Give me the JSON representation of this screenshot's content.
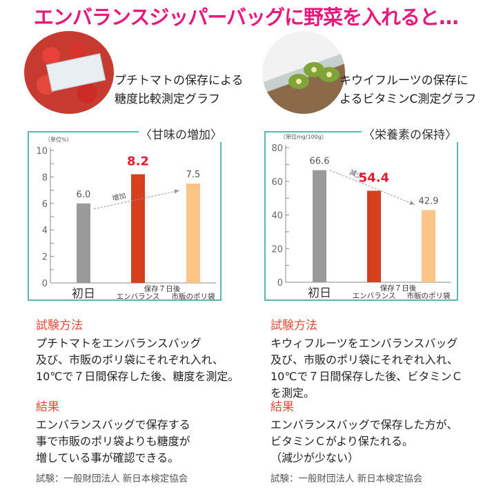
{
  "title": "エンバランスジッパーバッグに野菜を入れると…",
  "colors": {
    "title": "#e8197c",
    "border": "#57b7ae",
    "initial": "#9a9a9c",
    "embalance": "#d6401f",
    "polybag": "#fbc58a",
    "highlight": "#e8192c"
  },
  "left": {
    "caption": [
      "プチトマトの保存による",
      "糖度比較測定グラフ"
    ],
    "method_heading": "試験方法",
    "method": [
      "プチトマトをエンバランスバッグ",
      "及び、市販のポリ袋にそれぞれ入れ、",
      "10℃で７日間保存した後、糖度を測定。"
    ],
    "result_heading": "結果",
    "result": [
      "エンバランスバッグで保存する",
      "事で市販のポリ袋よりも糖度が",
      "増している事が確認できる。"
    ],
    "source": "試験：一般財団法人 新日本検定協会"
  },
  "right": {
    "caption": [
      "キウイフルーツの保存に",
      "よるビタミンC測定グラフ"
    ],
    "method_heading": "試験方法",
    "method": [
      "キウィフルーツをエンバランスバッグ",
      "及び、市販のポリ袋にそれぞれ入れ、",
      "10℃で７日間保存した後、ビタミンＣ",
      "を測定。"
    ],
    "result_heading": "結果",
    "result": [
      "エンバランスバッグで保存した方が、",
      "ビタミンＣがより保たれる。",
      "（減少が少ない）"
    ],
    "source": "試験：一般財団法人 新日本検定協会"
  },
  "chart_data": [
    {
      "type": "bar",
      "title": "〈甘味の増加〉",
      "unit": "（単位%）",
      "categories": [
        "初日",
        "エンバランス",
        "市販のポリ袋"
      ],
      "group_label": "保存７日後",
      "values": [
        6.0,
        8.2,
        7.5
      ],
      "value_labels": [
        "6.0",
        "8.2",
        "7.5"
      ],
      "ylim": [
        0,
        10
      ],
      "yticks": [
        0,
        2,
        4,
        6,
        8,
        10
      ],
      "annotation": "増加"
    },
    {
      "type": "bar",
      "title": "〈栄養素の保持〉",
      "unit": "（単位mg/100g）",
      "categories": [
        "初日",
        "エンバランス",
        "市販のポリ袋"
      ],
      "group_label": "保存７日後",
      "values": [
        66.6,
        54.4,
        42.9
      ],
      "value_labels": [
        "66.6",
        "54.4",
        "42.9"
      ],
      "ylim": [
        0,
        80
      ],
      "yticks": [
        0,
        20,
        40,
        60,
        80
      ],
      "annotation": "減少"
    }
  ]
}
